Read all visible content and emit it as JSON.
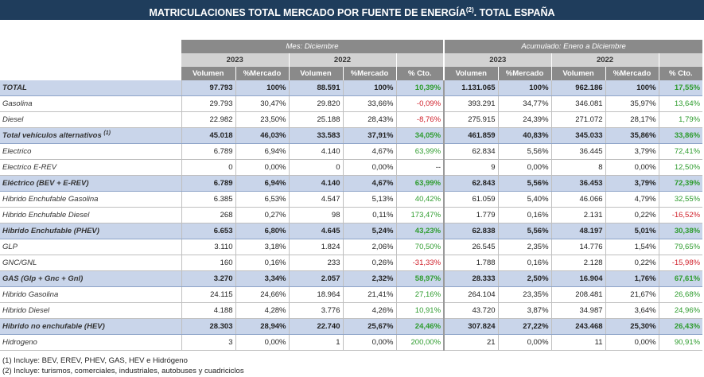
{
  "title": "MATRICULACIONES TOTAL MERCADO POR FUENTE DE ENERGÍA",
  "title_sup": "(2)",
  "title_suffix": ". TOTAL ESPAÑA",
  "groups": {
    "month": "Mes: Diciembre",
    "cumulative": "Acumulado: Enero a Diciembre"
  },
  "years": {
    "current": "2023",
    "previous": "2022"
  },
  "columns": {
    "volume": "Volumen",
    "share": "%Mercado",
    "growth": "% Cto."
  },
  "colors": {
    "header_dark": "#1f3d5c",
    "positive": "#2e9c2e",
    "negative": "#d0202a",
    "total_row": "#c9d5ea"
  },
  "rows": [
    {
      "label": "TOTAL",
      "sup": "",
      "total": true,
      "m": [
        "97.793",
        "100%",
        "88.591",
        "100%",
        "10,39%"
      ],
      "ms": "pos",
      "a": [
        "1.131.065",
        "100%",
        "962.186",
        "100%",
        "17,55%"
      ],
      "as": "pos"
    },
    {
      "label": "Gasolina",
      "sup": "",
      "total": false,
      "m": [
        "29.793",
        "30,47%",
        "29.820",
        "33,66%",
        "-0,09%"
      ],
      "ms": "neg",
      "a": [
        "393.291",
        "34,77%",
        "346.081",
        "35,97%",
        "13,64%"
      ],
      "as": "pos"
    },
    {
      "label": "Diesel",
      "sup": "",
      "total": false,
      "m": [
        "22.982",
        "23,50%",
        "25.188",
        "28,43%",
        "-8,76%"
      ],
      "ms": "neg",
      "a": [
        "275.915",
        "24,39%",
        "271.072",
        "28,17%",
        "1,79%"
      ],
      "as": "pos"
    },
    {
      "label": "Total vehículos alternativos",
      "sup": "(1)",
      "total": true,
      "m": [
        "45.018",
        "46,03%",
        "33.583",
        "37,91%",
        "34,05%"
      ],
      "ms": "pos",
      "a": [
        "461.859",
        "40,83%",
        "345.033",
        "35,86%",
        "33,86%"
      ],
      "as": "pos"
    },
    {
      "label": "Electrico",
      "sup": "",
      "total": false,
      "m": [
        "6.789",
        "6,94%",
        "4.140",
        "4,67%",
        "63,99%"
      ],
      "ms": "pos",
      "a": [
        "62.834",
        "5,56%",
        "36.445",
        "3,79%",
        "72,41%"
      ],
      "as": "pos"
    },
    {
      "label": "Electrico E-REV",
      "sup": "",
      "total": false,
      "m": [
        "0",
        "0,00%",
        "0",
        "0,00%",
        "--"
      ],
      "ms": "",
      "a": [
        "9",
        "0,00%",
        "8",
        "0,00%",
        "12,50%"
      ],
      "as": "pos"
    },
    {
      "label": "Eléctrico (BEV + E-REV)",
      "sup": "",
      "total": true,
      "m": [
        "6.789",
        "6,94%",
        "4.140",
        "4,67%",
        "63,99%"
      ],
      "ms": "pos",
      "a": [
        "62.843",
        "5,56%",
        "36.453",
        "3,79%",
        "72,39%"
      ],
      "as": "pos"
    },
    {
      "label": "Hibrido Enchufable Gasolina",
      "sup": "",
      "total": false,
      "m": [
        "6.385",
        "6,53%",
        "4.547",
        "5,13%",
        "40,42%"
      ],
      "ms": "pos",
      "a": [
        "61.059",
        "5,40%",
        "46.066",
        "4,79%",
        "32,55%"
      ],
      "as": "pos"
    },
    {
      "label": "Hibrido Enchufable Diesel",
      "sup": "",
      "total": false,
      "m": [
        "268",
        "0,27%",
        "98",
        "0,11%",
        "173,47%"
      ],
      "ms": "pos",
      "a": [
        "1.779",
        "0,16%",
        "2.131",
        "0,22%",
        "-16,52%"
      ],
      "as": "neg"
    },
    {
      "label": "Hibrido Enchufable (PHEV)",
      "sup": "",
      "total": true,
      "m": [
        "6.653",
        "6,80%",
        "4.645",
        "5,24%",
        "43,23%"
      ],
      "ms": "pos",
      "a": [
        "62.838",
        "5,56%",
        "48.197",
        "5,01%",
        "30,38%"
      ],
      "as": "pos"
    },
    {
      "label": "GLP",
      "sup": "",
      "total": false,
      "m": [
        "3.110",
        "3,18%",
        "1.824",
        "2,06%",
        "70,50%"
      ],
      "ms": "pos",
      "a": [
        "26.545",
        "2,35%",
        "14.776",
        "1,54%",
        "79,65%"
      ],
      "as": "pos"
    },
    {
      "label": "GNC/GNL",
      "sup": "",
      "total": false,
      "m": [
        "160",
        "0,16%",
        "233",
        "0,26%",
        "-31,33%"
      ],
      "ms": "neg",
      "a": [
        "1.788",
        "0,16%",
        "2.128",
        "0,22%",
        "-15,98%"
      ],
      "as": "neg"
    },
    {
      "label": "GAS (Glp + Gnc + Gnl)",
      "sup": "",
      "total": true,
      "m": [
        "3.270",
        "3,34%",
        "2.057",
        "2,32%",
        "58,97%"
      ],
      "ms": "pos",
      "a": [
        "28.333",
        "2,50%",
        "16.904",
        "1,76%",
        "67,61%"
      ],
      "as": "pos"
    },
    {
      "label": "Hibrido Gasolina",
      "sup": "",
      "total": false,
      "m": [
        "24.115",
        "24,66%",
        "18.964",
        "21,41%",
        "27,16%"
      ],
      "ms": "pos",
      "a": [
        "264.104",
        "23,35%",
        "208.481",
        "21,67%",
        "26,68%"
      ],
      "as": "pos"
    },
    {
      "label": "Hibrido Diesel",
      "sup": "",
      "total": false,
      "m": [
        "4.188",
        "4,28%",
        "3.776",
        "4,26%",
        "10,91%"
      ],
      "ms": "pos",
      "a": [
        "43.720",
        "3,87%",
        "34.987",
        "3,64%",
        "24,96%"
      ],
      "as": "pos"
    },
    {
      "label": "Hibrido no enchufable (HEV)",
      "sup": "",
      "total": true,
      "m": [
        "28.303",
        "28,94%",
        "22.740",
        "25,67%",
        "24,46%"
      ],
      "ms": "pos",
      "a": [
        "307.824",
        "27,22%",
        "243.468",
        "25,30%",
        "26,43%"
      ],
      "as": "pos"
    },
    {
      "label": "Hidrogeno",
      "sup": "",
      "total": false,
      "m": [
        "3",
        "0,00%",
        "1",
        "0,00%",
        "200,00%"
      ],
      "ms": "pos",
      "a": [
        "21",
        "0,00%",
        "11",
        "0,00%",
        "90,91%"
      ],
      "as": "pos"
    }
  ],
  "footnotes": [
    "(1) Incluye: BEV, EREV, PHEV, GAS, HEV e Hidrógeno",
    "(2) Incluye: turismos, comerciales, industriales, autobuses y cuadriciclos"
  ]
}
